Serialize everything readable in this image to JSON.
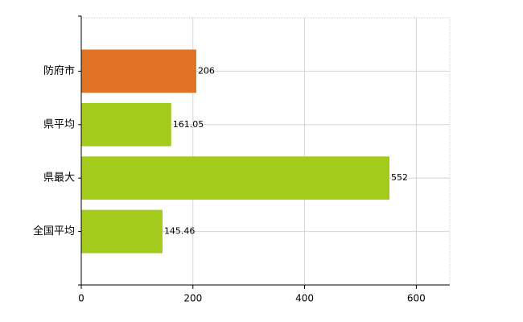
{
  "chart_data": {
    "type": "bar",
    "orientation": "horizontal",
    "categories": [
      "防府市",
      "県平均",
      "県最大",
      "全国平均"
    ],
    "values": [
      206,
      161.05,
      552,
      145.46
    ],
    "colors": [
      "#e07325",
      "#a2cb1c",
      "#a2cb1c",
      "#a2cb1c"
    ],
    "xlim": [
      0,
      660
    ],
    "xticks": [
      0,
      200,
      400,
      600
    ],
    "grid": true
  }
}
